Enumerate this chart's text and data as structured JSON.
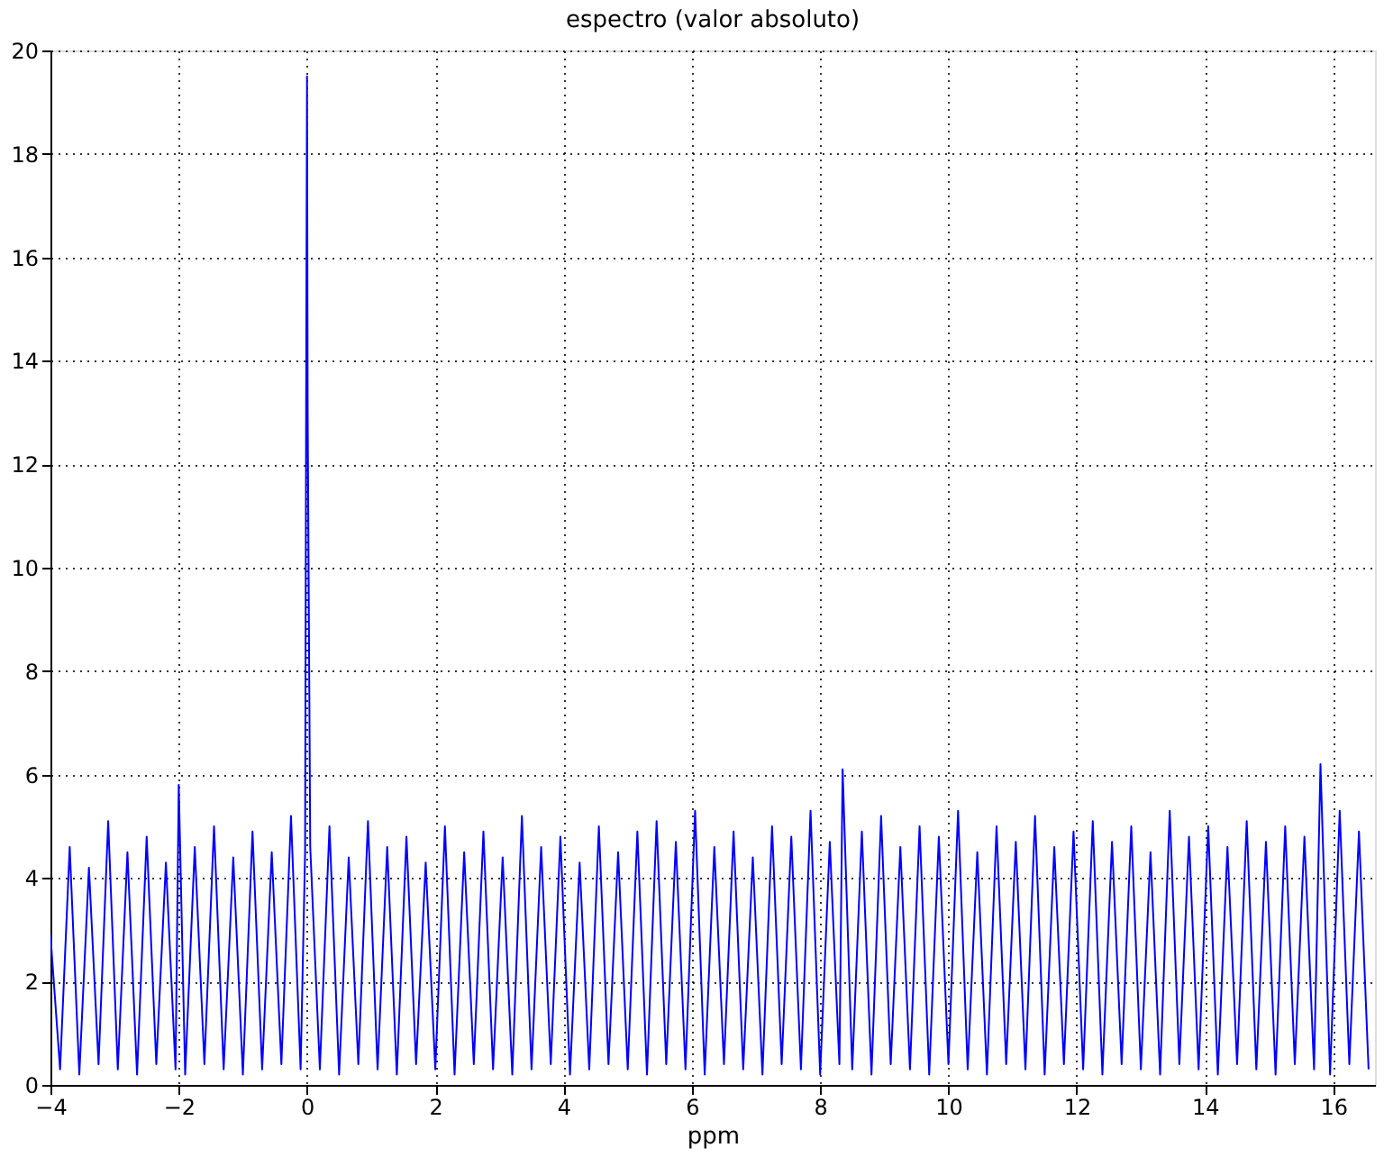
{
  "chart_data": {
    "type": "line",
    "title": "espectro (valor absoluto)",
    "xlabel": "ppm",
    "xlim": [
      -4,
      16.65
    ],
    "xticks": [
      -4,
      -2,
      0,
      2,
      4,
      6,
      8,
      10,
      12,
      14,
      16
    ],
    "ylim": [
      0,
      20
    ],
    "yticks": [
      0,
      2,
      4,
      6,
      8,
      10,
      12,
      14,
      16,
      18,
      20
    ],
    "grid": true,
    "line_style": "solid",
    "marker": "none",
    "series": [
      {
        "color": "#0000ff",
        "x": [
          -4.0,
          -3.85,
          -3.7,
          -3.55,
          -3.4,
          -3.25,
          -3.1,
          -2.95,
          -2.8,
          -2.65,
          -2.5,
          -2.35,
          -2.2,
          -2.05,
          -2.0,
          -1.9,
          -1.75,
          -1.6,
          -1.45,
          -1.3,
          -1.15,
          -1.0,
          -0.85,
          -0.7,
          -0.55,
          -0.4,
          -0.25,
          -0.1,
          -0.03,
          -0.01,
          0,
          0.01,
          0.05,
          0.2,
          0.35,
          0.5,
          0.65,
          0.8,
          0.95,
          1.1,
          1.25,
          1.4,
          1.55,
          1.7,
          1.85,
          2.0,
          2.15,
          2.3,
          2.45,
          2.6,
          2.75,
          2.9,
          3.05,
          3.2,
          3.35,
          3.5,
          3.65,
          3.8,
          3.95,
          4.1,
          4.25,
          4.4,
          4.55,
          4.7,
          4.85,
          5.0,
          5.15,
          5.3,
          5.45,
          5.6,
          5.75,
          5.9,
          6.05,
          6.2,
          6.35,
          6.5,
          6.65,
          6.8,
          6.95,
          7.1,
          7.25,
          7.4,
          7.55,
          7.7,
          7.85,
          8.0,
          8.15,
          8.3,
          8.35,
          8.5,
          8.65,
          8.8,
          8.95,
          9.1,
          9.25,
          9.4,
          9.55,
          9.7,
          9.85,
          10.0,
          10.15,
          10.3,
          10.45,
          10.6,
          10.75,
          10.9,
          11.05,
          11.2,
          11.35,
          11.5,
          11.65,
          11.8,
          11.95,
          12.1,
          12.25,
          12.4,
          12.55,
          12.7,
          12.85,
          13.0,
          13.15,
          13.3,
          13.45,
          13.6,
          13.75,
          13.9,
          14.05,
          14.2,
          14.35,
          14.5,
          14.65,
          14.8,
          14.95,
          15.1,
          15.25,
          15.4,
          15.55,
          15.7,
          15.8,
          15.95,
          16.1,
          16.25,
          16.4,
          16.55
        ],
        "values": [
          2.9,
          0.3,
          4.6,
          0.2,
          4.2,
          0.4,
          5.1,
          0.3,
          4.5,
          0.2,
          4.8,
          0.4,
          4.3,
          0.3,
          5.8,
          0.2,
          4.6,
          0.4,
          5.0,
          0.3,
          4.4,
          0.2,
          4.9,
          0.3,
          4.5,
          0.4,
          5.2,
          0.3,
          4.5,
          15,
          19.5,
          13,
          4.6,
          0.3,
          5.0,
          0.2,
          4.4,
          0.4,
          5.1,
          0.3,
          4.6,
          0.2,
          4.8,
          0.4,
          4.3,
          0.3,
          5.0,
          0.2,
          4.5,
          0.4,
          4.9,
          0.3,
          4.4,
          0.2,
          5.2,
          0.3,
          4.6,
          0.4,
          4.8,
          0.2,
          4.3,
          0.3,
          5.0,
          0.4,
          4.5,
          0.3,
          4.9,
          0.2,
          5.1,
          0.4,
          4.7,
          0.3,
          5.3,
          0.2,
          4.6,
          0.4,
          4.9,
          0.3,
          4.4,
          0.2,
          5.0,
          0.4,
          4.8,
          0.3,
          5.3,
          0.2,
          4.7,
          0.4,
          6.1,
          0.3,
          4.9,
          0.2,
          5.2,
          0.4,
          4.6,
          0.3,
          5.0,
          0.2,
          4.8,
          0.4,
          5.3,
          0.3,
          4.5,
          0.2,
          5.0,
          0.4,
          4.7,
          0.3,
          5.2,
          0.2,
          4.6,
          0.4,
          4.9,
          0.3,
          5.1,
          0.2,
          4.7,
          0.4,
          5.0,
          0.3,
          4.5,
          0.2,
          5.3,
          0.4,
          4.8,
          0.3,
          5.0,
          0.2,
          4.6,
          0.4,
          5.1,
          0.3,
          4.7,
          0.2,
          5.0,
          0.4,
          4.8,
          0.3,
          6.2,
          0.2,
          5.3,
          0.4,
          4.9,
          0.3
        ]
      }
    ]
  }
}
